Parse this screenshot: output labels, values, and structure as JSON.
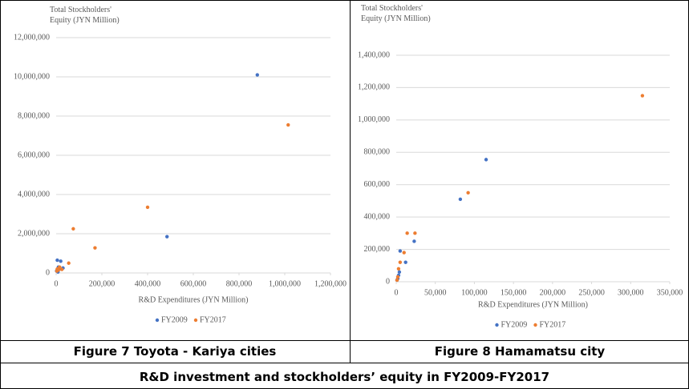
{
  "chart_data": [
    {
      "type": "scatter",
      "ylabel": "Total Stockholders' Equity (JYN Million)",
      "xlabel": "R&D Expenditures  (JYN Million)",
      "xlim": [
        0,
        1200000
      ],
      "ylim": [
        0,
        12000000
      ],
      "xticks": [
        0,
        {
          "value": 200000,
          "label": "200,000"
        },
        {
          "value": 400000,
          "label": "400,000"
        },
        {
          "value": 600000,
          "label": "600,000"
        },
        {
          "value": 800000,
          "label": "800,000"
        },
        {
          "value": 1000000,
          "label": "1,000,000"
        },
        {
          "value": 1200000,
          "label": "1,200,000"
        }
      ],
      "yticks": [
        0,
        {
          "value": 2000000,
          "label": "2,000,000"
        },
        {
          "value": 4000000,
          "label": "4,000,000"
        },
        {
          "value": 6000000,
          "label": "6,000,000"
        },
        {
          "value": 8000000,
          "label": "8,000,000"
        },
        {
          "value": 10000000,
          "label": "10,000,000"
        },
        {
          "value": 12000000,
          "label": "12,000,000"
        }
      ],
      "grid": true,
      "legend": "bottom",
      "series": [
        {
          "name": "FY2009",
          "color": "#4472c4",
          "x": [
            880000,
            485000,
            5000,
            20000,
            10000,
            30000,
            5000,
            2000,
            15000,
            8000
          ],
          "y": [
            10100000,
            1850000,
            650000,
            600000,
            300000,
            250000,
            150000,
            100000,
            200000,
            50000
          ]
        },
        {
          "name": "FY2017",
          "color": "#ed7d31",
          "x": [
            1015000,
            400000,
            75000,
            170000,
            55000,
            15000,
            5000,
            3000,
            10000,
            25000
          ],
          "y": [
            7550000,
            3350000,
            2250000,
            1280000,
            500000,
            300000,
            200000,
            100000,
            150000,
            180000
          ]
        }
      ]
    },
    {
      "type": "scatter",
      "ylabel": "Total Stockholders' Equity (JYN Million)",
      "xlabel": "R&D Expenditures  (JYN Million)",
      "xlim": [
        0,
        350000
      ],
      "ylim": [
        0,
        1400000
      ],
      "xticks": [
        0,
        {
          "value": 50000,
          "label": "50,000"
        },
        {
          "value": 100000,
          "label": "100,000"
        },
        {
          "value": 150000,
          "label": "150,000"
        },
        {
          "value": 200000,
          "label": "200,000"
        },
        {
          "value": 250000,
          "label": "250,000"
        },
        {
          "value": 300000,
          "label": "300,000"
        },
        {
          "value": 350000,
          "label": "350,000"
        }
      ],
      "yticks": [
        0,
        {
          "value": 200000,
          "label": "200,000"
        },
        {
          "value": 400000,
          "label": "400,000"
        },
        {
          "value": 600000,
          "label": "600,000"
        },
        {
          "value": 800000,
          "label": "800,000"
        },
        {
          "value": 1000000,
          "label": "1,000,000"
        },
        {
          "value": 1200000,
          "label": "1,200,000"
        },
        {
          "value": 1400000,
          "label": "1,400,000"
        }
      ],
      "grid": true,
      "legend": "bottom",
      "series": [
        {
          "name": "FY2009",
          "color": "#4472c4",
          "x": [
            115000,
            82000,
            23000,
            12000,
            5000,
            3000,
            2000,
            1000,
            4000
          ],
          "y": [
            755000,
            510000,
            250000,
            120000,
            190000,
            40000,
            20000,
            10000,
            60000
          ]
        },
        {
          "name": "FY2017",
          "color": "#ed7d31",
          "x": [
            315000,
            92000,
            24000,
            14000,
            10000,
            5000,
            3000,
            2000,
            1000
          ],
          "y": [
            1150000,
            550000,
            300000,
            300000,
            180000,
            120000,
            80000,
            30000,
            10000
          ]
        }
      ]
    }
  ],
  "captions": [
    "Figure 7 Toyota - Kariya cities",
    "Figure 8 Hamamatsu city"
  ],
  "table_caption": "R&D investment and stockholders’ equity in FY2009-FY2017"
}
